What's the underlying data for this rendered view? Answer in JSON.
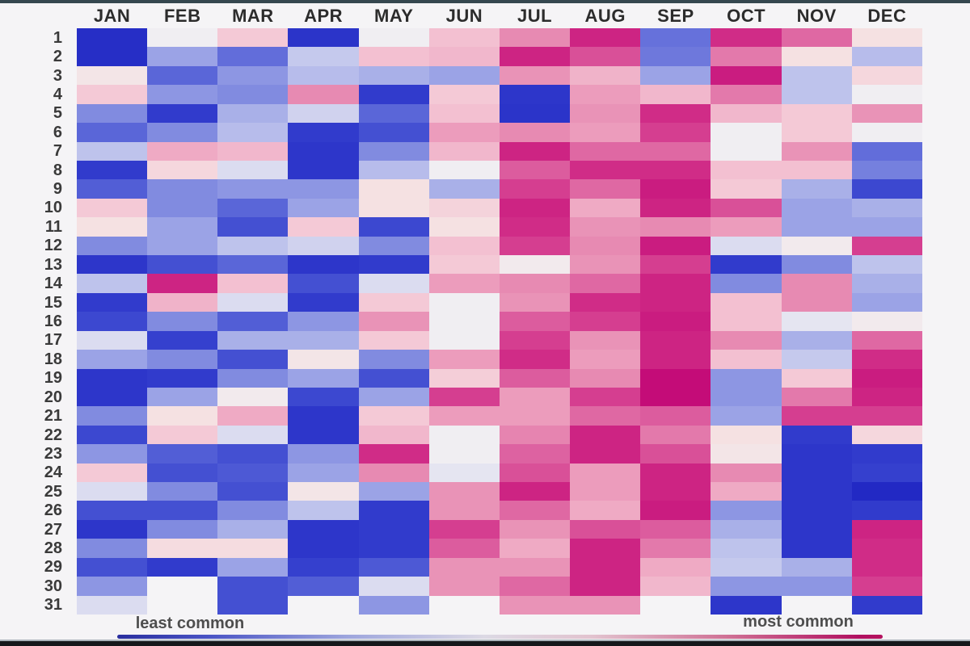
{
  "legend": {
    "least": "least common",
    "most": "most common"
  },
  "colors": {
    "least_common": "#1e24c2",
    "most_common": "#bd0470",
    "neutral": "#f0eef2",
    "scale_stops": [
      [
        0,
        "#1e24c2"
      ],
      [
        12,
        "#3743cf"
      ],
      [
        25,
        "#5a66d8"
      ],
      [
        38,
        "#8d96e3"
      ],
      [
        46,
        "#c5c9ed"
      ],
      [
        50,
        "#f0eef2"
      ],
      [
        53,
        "#f5e1e2"
      ],
      [
        58,
        "#f4c9d6"
      ],
      [
        65,
        "#efaac4"
      ],
      [
        72,
        "#e78ab2"
      ],
      [
        80,
        "#dc5c9e"
      ],
      [
        88,
        "#d02c87"
      ],
      [
        96,
        "#c40c78"
      ],
      [
        100,
        "#bd0470"
      ]
    ]
  },
  "chart_data": {
    "type": "heatmap",
    "title": "",
    "xlabel": "",
    "ylabel": "",
    "legend_position": "bottom",
    "grid": false,
    "value_scale": "0 = least common (deep blue), 50 = neutral (white), 100 = most common (deep magenta); null = date does not exist",
    "categories": [
      "JAN",
      "FEB",
      "MAR",
      "APR",
      "MAY",
      "JUN",
      "JUL",
      "AUG",
      "SEP",
      "OCT",
      "NOV",
      "DEC"
    ],
    "rows": [
      "1",
      "2",
      "3",
      "4",
      "5",
      "6",
      "7",
      "8",
      "9",
      "10",
      "11",
      "12",
      "13",
      "14",
      "15",
      "16",
      "17",
      "18",
      "19",
      "20",
      "21",
      "22",
      "23",
      "24",
      "25",
      "26",
      "27",
      "28",
      "29",
      "30",
      "31"
    ],
    "values": [
      [
        4,
        50,
        58,
        6,
        50,
        60,
        72,
        90,
        28,
        88,
        78,
        53
      ],
      [
        4,
        40,
        27,
        46,
        60,
        62,
        90,
        82,
        30,
        75,
        53,
        44
      ],
      [
        52,
        25,
        38,
        44,
        42,
        40,
        70,
        63,
        40,
        92,
        45,
        55
      ],
      [
        58,
        38,
        35,
        72,
        9,
        58,
        7,
        68,
        62,
        75,
        45,
        50
      ],
      [
        35,
        9,
        42,
        47,
        25,
        60,
        6,
        70,
        88,
        62,
        58,
        70
      ],
      [
        25,
        35,
        44,
        9,
        17,
        68,
        72,
        68,
        85,
        50,
        58,
        50
      ],
      [
        45,
        65,
        62,
        7,
        35,
        62,
        90,
        78,
        78,
        50,
        70,
        27
      ],
      [
        9,
        55,
        48,
        7,
        44,
        50,
        80,
        88,
        88,
        60,
        60,
        32
      ],
      [
        22,
        35,
        38,
        38,
        53,
        42,
        85,
        78,
        92,
        58,
        42,
        14
      ],
      [
        58,
        35,
        25,
        40,
        53,
        56,
        90,
        65,
        90,
        82,
        40,
        42
      ],
      [
        53,
        40,
        17,
        58,
        14,
        53,
        88,
        70,
        72,
        68,
        40,
        40
      ],
      [
        35,
        40,
        45,
        47,
        35,
        60,
        85,
        72,
        92,
        48,
        51,
        85
      ],
      [
        7,
        17,
        25,
        7,
        9,
        58,
        51,
        70,
        85,
        9,
        35,
        45
      ],
      [
        45,
        90,
        60,
        17,
        48,
        68,
        72,
        78,
        90,
        35,
        72,
        42
      ],
      [
        9,
        63,
        48,
        9,
        58,
        50,
        70,
        88,
        90,
        60,
        72,
        40
      ],
      [
        14,
        35,
        22,
        38,
        70,
        50,
        80,
        85,
        92,
        60,
        49,
        51
      ],
      [
        48,
        11,
        42,
        42,
        58,
        50,
        85,
        70,
        90,
        72,
        42,
        78
      ],
      [
        40,
        35,
        17,
        52,
        35,
        68,
        88,
        68,
        90,
        60,
        46,
        88
      ],
      [
        7,
        9,
        35,
        40,
        17,
        57,
        80,
        72,
        96,
        38,
        58,
        92
      ],
      [
        7,
        40,
        51,
        14,
        40,
        85,
        68,
        85,
        96,
        38,
        75,
        90
      ],
      [
        35,
        53,
        65,
        7,
        58,
        68,
        68,
        78,
        80,
        40,
        85,
        85
      ],
      [
        14,
        58,
        48,
        7,
        62,
        50,
        73,
        90,
        75,
        53,
        9,
        55
      ],
      [
        38,
        22,
        17,
        38,
        88,
        50,
        79,
        90,
        82,
        52,
        7,
        9
      ],
      [
        58,
        17,
        20,
        40,
        72,
        49,
        82,
        68,
        90,
        72,
        7,
        11
      ],
      [
        48,
        35,
        17,
        52,
        40,
        70,
        90,
        68,
        90,
        65,
        7,
        2
      ],
      [
        17,
        17,
        35,
        45,
        9,
        70,
        78,
        65,
        92,
        38,
        7,
        9
      ],
      [
        7,
        35,
        42,
        7,
        9,
        85,
        70,
        82,
        80,
        42,
        7,
        90
      ],
      [
        35,
        54,
        54,
        7,
        9,
        80,
        65,
        90,
        75,
        45,
        7,
        88
      ],
      [
        17,
        9,
        40,
        11,
        20,
        70,
        70,
        90,
        65,
        46,
        42,
        88
      ],
      [
        38,
        null,
        17,
        22,
        48,
        70,
        78,
        90,
        62,
        38,
        38,
        85
      ],
      [
        48,
        null,
        17,
        null,
        38,
        null,
        70,
        70,
        null,
        7,
        null,
        9
      ]
    ]
  }
}
